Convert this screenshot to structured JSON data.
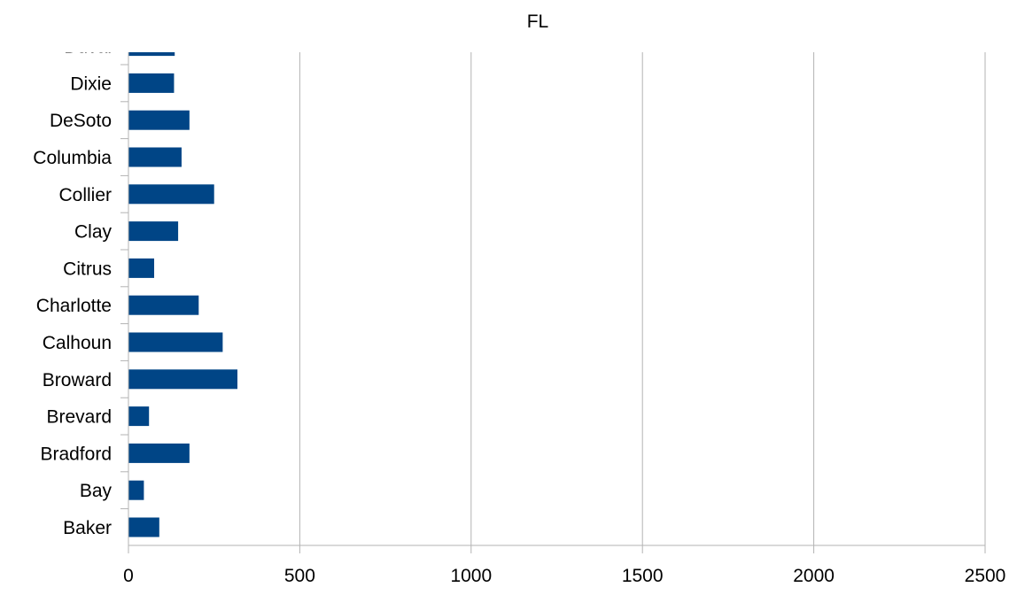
{
  "chart_data": {
    "type": "bar",
    "orientation": "horizontal",
    "title": "FL",
    "xlabel": "",
    "ylabel": "",
    "xlim": [
      0,
      2500
    ],
    "x_ticks": [
      0,
      500,
      1000,
      1500,
      2000,
      2500
    ],
    "grid": true,
    "legend": "none",
    "bar_color": "#004586",
    "categories": [
      "Baker",
      "Bay",
      "Bradford",
      "Brevard",
      "Broward",
      "Calhoun",
      "Charlotte",
      "Citrus",
      "Clay",
      "Collier",
      "Columbia",
      "DeSoto",
      "Dixie",
      "Duval"
    ],
    "values": [
      90,
      45,
      178,
      60,
      318,
      275,
      205,
      75,
      145,
      250,
      155,
      178,
      133,
      135
    ]
  }
}
